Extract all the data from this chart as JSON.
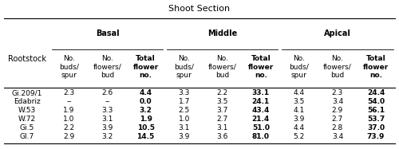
{
  "title": "Shoot Section",
  "sections": [
    "Basal",
    "Middle",
    "Apical"
  ],
  "col_headers": [
    "No.\nbuds/\nspur",
    "No.\nflowers/\nbud",
    "Total\nflower\nno."
  ],
  "row_label": "Rootstock",
  "rootstocks": [
    "Gi.209/1",
    "Edabriz",
    "W.53",
    "W.72",
    "Gi.5",
    "Gl.7"
  ],
  "data": {
    "Basal": {
      "No.\nbuds/\nspur": [
        "2.3",
        "--",
        "1.9",
        "1.0",
        "2.2",
        "2.9"
      ],
      "No.\nflowers/\nbud": [
        "2.6",
        "--",
        "3.3",
        "3.1",
        "3.9",
        "3.2"
      ],
      "Total\nflower\nno.": [
        "4.4",
        "0.0",
        "3.2",
        "1.9",
        "10.5",
        "14.5"
      ]
    },
    "Middle": {
      "No.\nbuds/\nspur": [
        "3.3",
        "1.7",
        "2.5",
        "1.0",
        "3.1",
        "3.9"
      ],
      "No.\nflowers/\nbud": [
        "2.2",
        "3.5",
        "3.7",
        "2.7",
        "3.1",
        "3.6"
      ],
      "Total\nflower\nno.": [
        "33.1",
        "24.1",
        "43.4",
        "21.4",
        "51.0",
        "81.0"
      ]
    },
    "Apical": {
      "No.\nbuds/\nspur": [
        "4.4",
        "3.5",
        "4.1",
        "3.9",
        "4.4",
        "5.2"
      ],
      "No.\nflowers/\nbud": [
        "2.3",
        "3.4",
        "2.9",
        "2.7",
        "2.8",
        "3.4"
      ],
      "Total\nflower\nno.": [
        "24.4",
        "54.0",
        "56.1",
        "53.7",
        "37.0",
        "73.9"
      ]
    }
  },
  "bold_cols": [
    "Total\nflower\nno."
  ],
  "bg_color": "#ffffff",
  "font_size_title": 8,
  "font_size_header": 6.5,
  "font_size_data": 6.5,
  "font_size_rowlabel": 7
}
